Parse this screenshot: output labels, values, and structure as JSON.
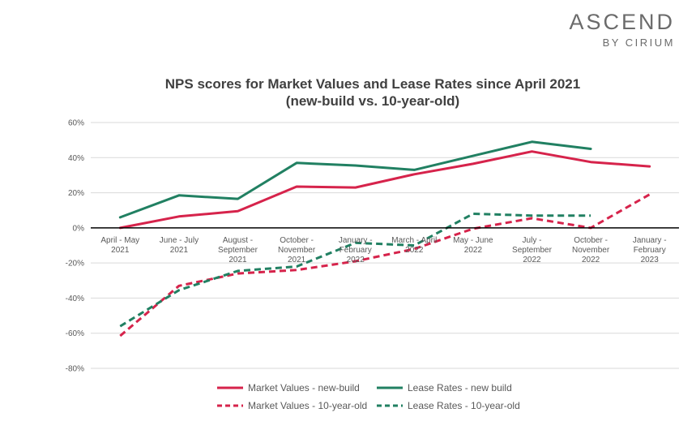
{
  "brand": {
    "name": "ASCEND",
    "sub": "BY CIRIUM"
  },
  "colors": {
    "market": "#d6234b",
    "lease": "#218062",
    "axis": "#000000",
    "grid": "#d9d9d9"
  },
  "chart_data": {
    "type": "line",
    "title": "NPS scores for Market Values and Lease Rates since April 2021\n(new-build vs. 10-year-old)",
    "categories": [
      [
        "April - May",
        "2021"
      ],
      [
        "June - July",
        "2021"
      ],
      [
        "August -",
        "September",
        "2021"
      ],
      [
        "October -",
        "November",
        "2021"
      ],
      [
        "January -",
        "February",
        "2022"
      ],
      [
        "March - April",
        "2022"
      ],
      [
        "May - June",
        "2022"
      ],
      [
        "July -",
        "September",
        "2022"
      ],
      [
        "October -",
        "November",
        "2022"
      ],
      [
        "January -",
        "February",
        "2023"
      ]
    ],
    "ylim": [
      -80,
      60
    ],
    "yticks": [
      -80,
      -60,
      -40,
      -20,
      0,
      20,
      40,
      60
    ],
    "yticks_labels": [
      "-80%",
      "-60%",
      "-40%",
      "-20%",
      "0%",
      "20%",
      "40%",
      "60%"
    ],
    "grid": true,
    "legend_position": "bottom",
    "series": [
      {
        "name": "Market Values - new-build",
        "color": "#d6234b",
        "dash": false,
        "values": [
          0,
          6.5,
          9.5,
          23.5,
          23,
          30.5,
          36.5,
          43.5,
          37.5,
          35
        ]
      },
      {
        "name": "Lease Rates - new build",
        "color": "#218062",
        "dash": false,
        "values": [
          6,
          18.5,
          16.5,
          37,
          35.5,
          33,
          41,
          49,
          45,
          null
        ]
      },
      {
        "name": "Market Values - 10-year-old",
        "color": "#d6234b",
        "dash": true,
        "values": [
          -61.5,
          -33,
          -26,
          -24,
          -19,
          -12,
          -0.5,
          5.5,
          0,
          19
        ]
      },
      {
        "name": "Lease Rates - 10-year-old",
        "color": "#218062",
        "dash": true,
        "values": [
          -56,
          -35.5,
          -24.5,
          -22,
          -8.5,
          -10,
          8,
          7,
          7,
          null
        ]
      }
    ]
  }
}
